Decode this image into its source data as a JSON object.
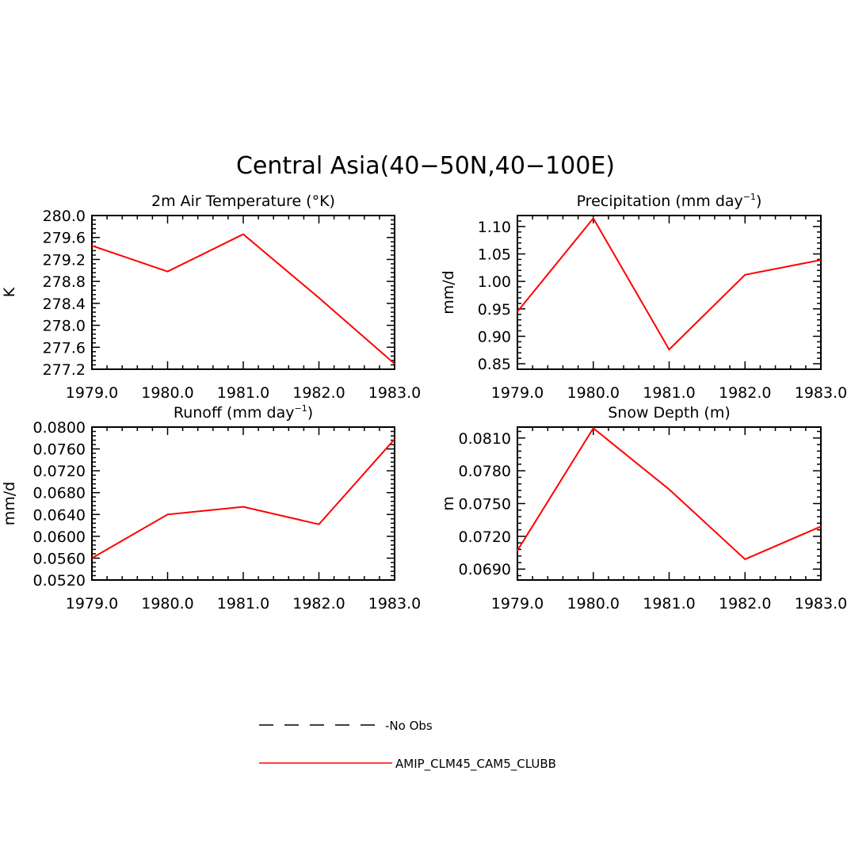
{
  "figure": {
    "title": "Central Asia(40−50N,40−100E)",
    "line_color": "#ff0000"
  },
  "legend": {
    "items": [
      {
        "label": "-No Obs",
        "style": "dashed",
        "color": "#000000"
      },
      {
        "label": "AMIP_CLM45_CAM5_CLUBB",
        "style": "solid",
        "color": "#ff0000"
      }
    ]
  },
  "chart_data": [
    {
      "type": "line",
      "title": "2m Air Temperature (°K)",
      "title_parts": [
        "2m Air Temperature (°K)"
      ],
      "ylabel": "K",
      "x": [
        1979,
        1980,
        1981,
        1982,
        1983
      ],
      "xticks": [
        "1979.0",
        "1980.0",
        "1981.0",
        "1982.0",
        "1983.0"
      ],
      "xlim": [
        1979,
        1983
      ],
      "ylim": [
        277.2,
        280.0
      ],
      "ytick_values": [
        277.2,
        277.6,
        278.0,
        278.4,
        278.8,
        279.2,
        279.6,
        280.0
      ],
      "yticks": [
        "277.2",
        "277.6",
        "278.0",
        "278.4",
        "278.8",
        "279.2",
        "279.6",
        "280.0"
      ],
      "series": [
        {
          "name": "AMIP_CLM45_CAM5_CLUBB",
          "values": [
            279.45,
            278.98,
            279.66,
            278.5,
            277.3
          ]
        }
      ]
    },
    {
      "type": "line",
      "title": "Precipitation (mm day⁻¹)",
      "title_parts": [
        "Precipitation (mm day",
        "−1",
        ")"
      ],
      "ylabel": "mm/d",
      "x": [
        1979,
        1980,
        1981,
        1982,
        1983
      ],
      "xticks": [
        "1979.0",
        "1980.0",
        "1981.0",
        "1982.0",
        "1983.0"
      ],
      "xlim": [
        1979,
        1983
      ],
      "ylim": [
        0.84,
        1.12
      ],
      "ytick_values": [
        0.85,
        0.9,
        0.95,
        1.0,
        1.05,
        1.1
      ],
      "yticks": [
        "0.85",
        "0.90",
        "0.95",
        "1.00",
        "1.05",
        "1.10"
      ],
      "series": [
        {
          "name": "AMIP_CLM45_CAM5_CLUBB",
          "values": [
            0.945,
            1.115,
            0.876,
            1.012,
            1.039
          ]
        }
      ]
    },
    {
      "type": "line",
      "title": "Runoff (mm day⁻¹)",
      "title_parts": [
        "Runoff (mm day",
        "−1",
        ")"
      ],
      "ylabel": "mm/d",
      "x": [
        1979,
        1980,
        1981,
        1982,
        1983
      ],
      "xticks": [
        "1979.0",
        "1980.0",
        "1981.0",
        "1982.0",
        "1983.0"
      ],
      "xlim": [
        1979,
        1983
      ],
      "ylim": [
        0.052,
        0.08
      ],
      "ytick_values": [
        0.052,
        0.056,
        0.06,
        0.064,
        0.068,
        0.072,
        0.076,
        0.08
      ],
      "yticks": [
        "0.0520",
        "0.0560",
        "0.0600",
        "0.0640",
        "0.0680",
        "0.0720",
        "0.0760",
        "0.0800"
      ],
      "series": [
        {
          "name": "AMIP_CLM45_CAM5_CLUBB",
          "values": [
            0.056,
            0.064,
            0.0654,
            0.0622,
            0.0778
          ]
        }
      ]
    },
    {
      "type": "line",
      "title": "Snow Depth (m)",
      "title_parts": [
        "Snow Depth (m)"
      ],
      "ylabel": "m",
      "x": [
        1979,
        1980,
        1981,
        1982,
        1983
      ],
      "xticks": [
        "1979.0",
        "1980.0",
        "1981.0",
        "1982.0",
        "1983.0"
      ],
      "xlim": [
        1979,
        1983
      ],
      "ylim": [
        0.068,
        0.082
      ],
      "ytick_values": [
        0.069,
        0.072,
        0.075,
        0.078,
        0.081
      ],
      "yticks": [
        "0.0690",
        "0.0720",
        "0.0750",
        "0.0780",
        "0.0810"
      ],
      "series": [
        {
          "name": "AMIP_CLM45_CAM5_CLUBB",
          "values": [
            0.0707,
            0.0819,
            0.0763,
            0.0699,
            0.0729
          ]
        }
      ]
    }
  ]
}
